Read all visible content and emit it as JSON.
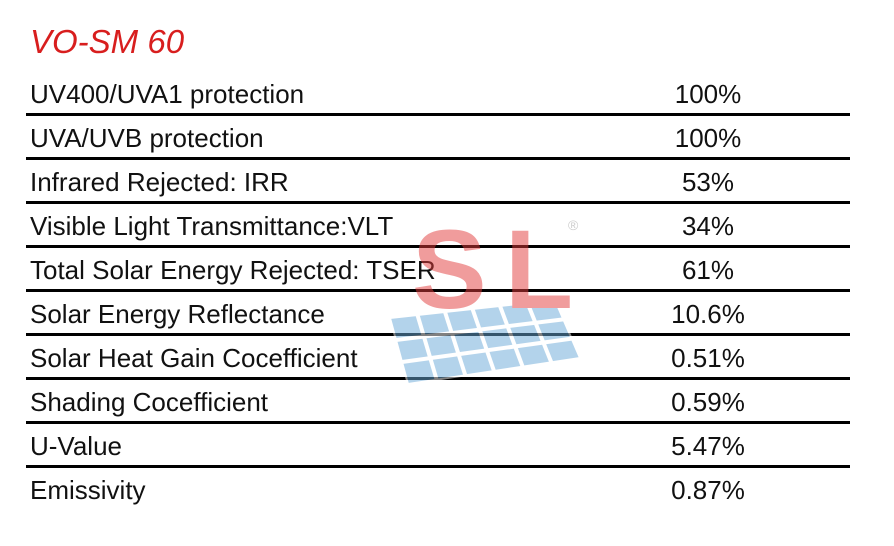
{
  "title": "VO-SM 60",
  "watermark": {
    "text": "SL",
    "registered_mark": "®",
    "letter_color": "#e23c3c",
    "grid_color": "#6aa9d8"
  },
  "specs": [
    {
      "label": "UV400/UVA1 protection",
      "value": "100%"
    },
    {
      "label": "UVA/UVB protection",
      "value": "100%"
    },
    {
      "label": "Infrared Rejected: IRR",
      "value": "53%"
    },
    {
      "label": "Visible Light Transmittance:VLT",
      "value": "34%"
    },
    {
      "label": "Total Solar Energy Rejected: TSER",
      "value": "61%"
    },
    {
      "label": "Solar Energy Reflectance",
      "value": "10.6%"
    },
    {
      "label": "Solar Heat Gain Cocefficient",
      "value": "0.51%"
    },
    {
      "label": "Shading Cocefficient",
      "value": "0.59%"
    },
    {
      "label": "U-Value",
      "value": "5.47%"
    },
    {
      "label": "Emissivity",
      "value": "0.87%"
    }
  ]
}
